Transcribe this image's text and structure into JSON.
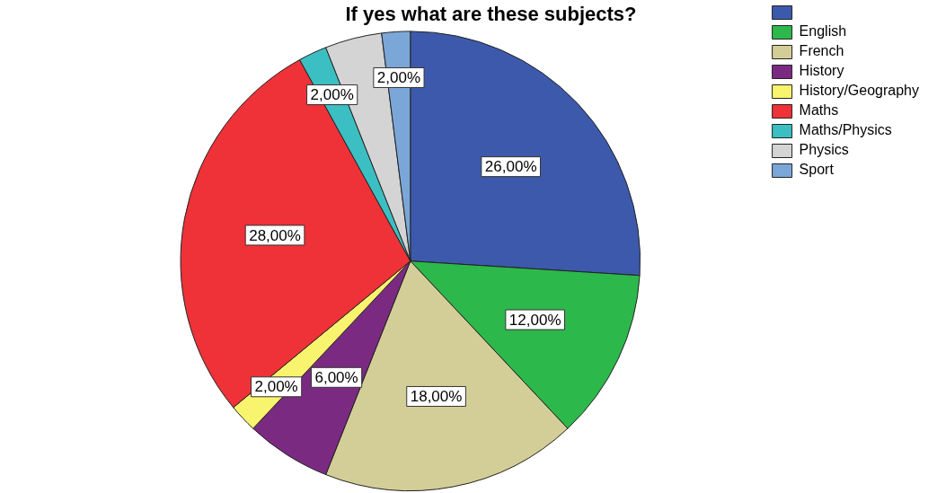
{
  "chart_data": {
    "type": "pie",
    "title": "If yes what are these subjects?",
    "categories": [
      null,
      "English",
      "French",
      "History",
      "History/Geography",
      "Maths",
      "Maths/Physics",
      "Physics",
      "Sport"
    ],
    "values": [
      26,
      12,
      18,
      6,
      2,
      28,
      2,
      4,
      2
    ],
    "value_labels": [
      "26,00%",
      "12,00%",
      "18,00%",
      "6,00%",
      "2,00%",
      "28,00%",
      "2,00%",
      null,
      "2,00%"
    ],
    "colors": [
      "#3d59ab",
      "#2db84b",
      "#d3ce97",
      "#7b2a82",
      "#f9f46e",
      "#ee3238",
      "#3bbfc2",
      "#d4d4d4",
      "#7ba7d8"
    ],
    "legend": "top right"
  }
}
